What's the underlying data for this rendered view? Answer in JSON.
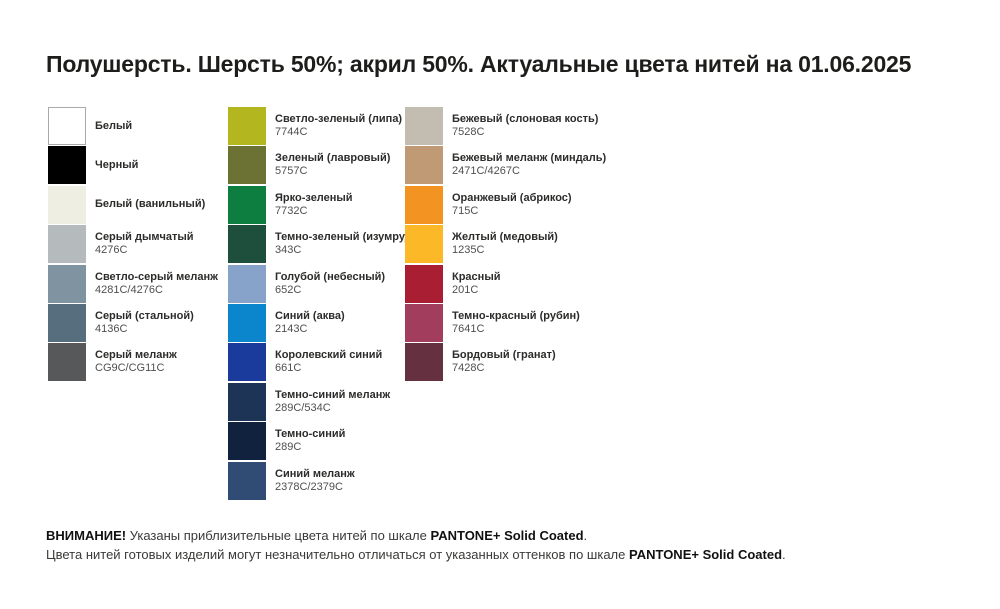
{
  "title": "Полушерсть. Шерсть 50%; акрил 50%. Актуальные цвета нитей на 01.06.2025",
  "palette": {
    "columns": [
      {
        "swatches": [
          {
            "name": "Белый",
            "code": "",
            "color": "#ffffff",
            "bordered": true
          },
          {
            "name": "Черный",
            "code": "",
            "color": "#000000"
          },
          {
            "name": "Белый (ванильный)",
            "code": "",
            "color": "#efeee3"
          },
          {
            "name": "Серый дымчатый",
            "code": "4276C",
            "color": "#b5babd"
          },
          {
            "name": "Светло-серый меланж",
            "code": "4281C/4276C",
            "color": "#8093a0"
          },
          {
            "name": "Серый (стальной)",
            "code": "4136C",
            "color": "#566e7e"
          },
          {
            "name": "Серый меланж",
            "code": "CG9C/CG11C",
            "color": "#56585a"
          }
        ]
      },
      {
        "swatches": [
          {
            "name": "Светло-зеленый (липа)",
            "code": "7744C",
            "color": "#b4b61f"
          },
          {
            "name": "Зеленый (лавровый)",
            "code": "5757C",
            "color": "#6c7233"
          },
          {
            "name": "Ярко-зеленый",
            "code": "7732C",
            "color": "#0d7e3f"
          },
          {
            "name": "Темно-зеленый (изумруд)",
            "code": "343C",
            "color": "#1e4e3c"
          },
          {
            "name": "Голубой (небесный)",
            "code": "652C",
            "color": "#87a3c9"
          },
          {
            "name": "Синий (аква)",
            "code": "2143C",
            "color": "#0b86cd"
          },
          {
            "name": "Королевский синий",
            "code": "661C",
            "color": "#1a3a9c"
          },
          {
            "name": "Темно-синий меланж",
            "code": "289C/534C",
            "color": "#1e3457"
          },
          {
            "name": "Темно-синий",
            "code": "289C",
            "color": "#11223f"
          },
          {
            "name": "Синий меланж",
            "code": "2378C/2379C",
            "color": "#304b74"
          }
        ]
      },
      {
        "swatches": [
          {
            "name": "Бежевый (слоновая кость)",
            "code": "7528C",
            "color": "#c3bcb1"
          },
          {
            "name": "Бежевый меланж (миндаль)",
            "code": "2471C/4267C",
            "color": "#c09a74"
          },
          {
            "name": "Оранжевый (абрикос)",
            "code": "715C",
            "color": "#f39322"
          },
          {
            "name": "Желтый (медовый)",
            "code": "1235C",
            "color": "#fcb827"
          },
          {
            "name": "Красный",
            "code": "201C",
            "color": "#aa1e33"
          },
          {
            "name": "Темно-красный (рубин)",
            "code": "7641C",
            "color": "#a33d5e"
          },
          {
            "name": "Бордовый (гранат)",
            "code": "7428C",
            "color": "#653040"
          }
        ]
      }
    ]
  },
  "footer": {
    "line1_attention": "ВНИМАНИЕ!",
    "line1_text": " Указаны приблизительные цвета нитей по шкале ",
    "line1_scale": "PANTONE+ Solid Coated",
    "line1_period": ".",
    "line2_text": "Цвета нитей готовых изделий могут незначительно отличаться от указанных оттенков по шкале ",
    "line2_scale": "PANTONE+ Solid Coated",
    "line2_period": "."
  }
}
